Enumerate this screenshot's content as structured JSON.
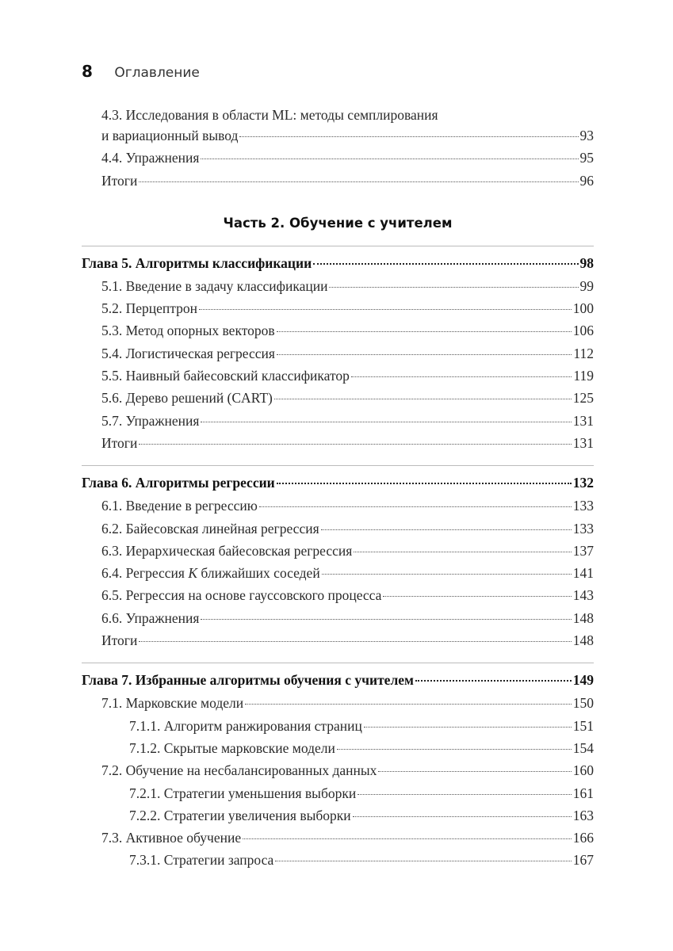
{
  "header": {
    "page_number": "8",
    "title": "Оглавление"
  },
  "pre": [
    {
      "line1": "4.3. Исследования в области ML: методы семплирования",
      "line2": "и вариационный вывод",
      "page": "93"
    },
    {
      "text": "4.4. Упражнения",
      "page": "95"
    },
    {
      "text": "Итоги",
      "page": "96"
    }
  ],
  "part": "Часть 2. Обучение с учителем",
  "chapters": [
    {
      "title": "Глава 5. Алгоритмы классификации",
      "page": "98",
      "items": [
        {
          "text": "5.1. Введение в задачу классификации",
          "page": "99"
        },
        {
          "text": "5.2. Перцептрон",
          "page": "100"
        },
        {
          "text": "5.3. Метод опорных векторов",
          "page": "106"
        },
        {
          "text": "5.4. Логистическая регрессия",
          "page": "112"
        },
        {
          "text": "5.5. Наивный байесовский классификатор",
          "page": "119"
        },
        {
          "text": "5.6. Дерево решений (CART)",
          "page": "125"
        },
        {
          "text": "5.7. Упражнения",
          "page": "131"
        },
        {
          "text": "Итоги",
          "page": "131"
        }
      ]
    },
    {
      "title": "Глава 6. Алгоритмы регрессии",
      "page": "132",
      "items": [
        {
          "text": "6.1. Введение в регрессию",
          "page": "133"
        },
        {
          "text": "6.2. Байесовская линейная регрессия",
          "page": "133"
        },
        {
          "text": "6.3. Иерархическая байесовская регрессия",
          "page": "137"
        },
        {
          "text": "6.4. Регрессия K ближайших соседей",
          "page": "141"
        },
        {
          "text": "6.5. Регрессия на основе гауссовского процесса",
          "page": "143"
        },
        {
          "text": "6.6. Упражнения",
          "page": "148"
        },
        {
          "text": "Итоги",
          "page": "148"
        }
      ]
    },
    {
      "title": "Глава 7. Избранные алгоритмы обучения с учителем",
      "page": "149",
      "items": [
        {
          "text": "7.1. Марковские модели",
          "page": "150",
          "level": 1
        },
        {
          "text": "7.1.1. Алгоритм ранжирования страниц",
          "page": "151",
          "level": 2
        },
        {
          "text": "7.1.2. Скрытые марковские модели",
          "page": "154",
          "level": 2
        },
        {
          "text": "7.2. Обучение на несбалансированных данных",
          "page": "160",
          "level": 1
        },
        {
          "text": "7.2.1. Стратегии уменьшения выборки",
          "page": "161",
          "level": 2
        },
        {
          "text": "7.2.2. Стратегии увеличения выборки",
          "page": "163",
          "level": 2
        },
        {
          "text": "7.3. Активное обучение",
          "page": "166",
          "level": 1
        },
        {
          "text": "7.3.1. Стратегии запроса",
          "page": "167",
          "level": 2
        }
      ]
    }
  ]
}
